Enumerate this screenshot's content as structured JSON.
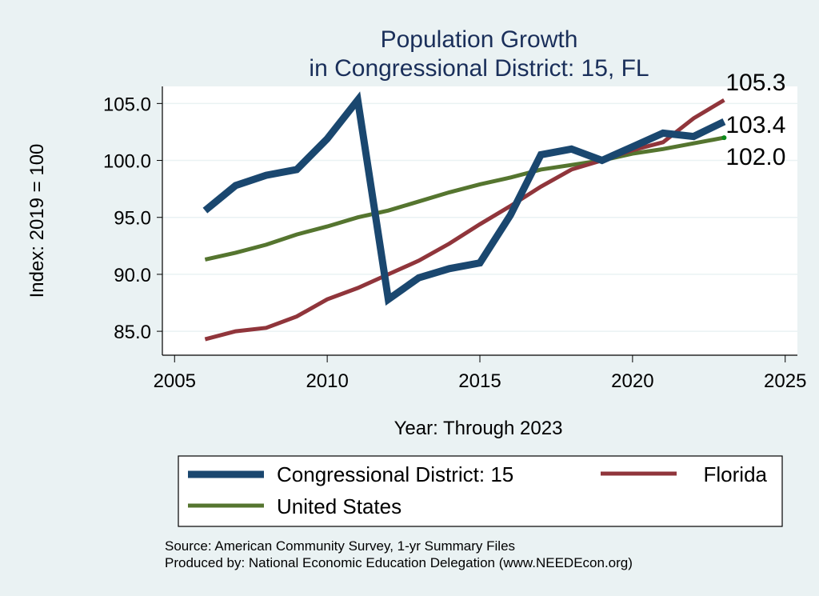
{
  "chart_data": {
    "type": "line",
    "title": [
      "Population Growth",
      "in Congressional District: 15, FL"
    ],
    "xlabel": "Year: Through 2023",
    "ylabel": "Index: 2019 = 100",
    "xlim": [
      2004.6,
      2025.4
    ],
    "ylim": [
      82.9,
      106.5
    ],
    "xticks": [
      2005,
      2010,
      2015,
      2020,
      2025
    ],
    "xtick_labels": [
      "2005",
      "2010",
      "2015",
      "2020",
      "2025"
    ],
    "yticks": [
      85,
      90,
      95,
      100,
      105
    ],
    "ytick_labels": [
      "85.0",
      "90.0",
      "95.0",
      "100.0",
      "105.0"
    ],
    "grid": "horizontal",
    "x": [
      2006,
      2007,
      2008,
      2009,
      2010,
      2011,
      2012,
      2013,
      2014,
      2015,
      2016,
      2017,
      2018,
      2019,
      2020,
      2021,
      2022,
      2023
    ],
    "series": [
      {
        "name": "Congressional District: 15",
        "color": "#1a476f",
        "values": [
          95.6,
          97.8,
          98.7,
          99.2,
          101.9,
          105.3,
          87.8,
          89.7,
          90.5,
          91.0,
          95.2,
          100.5,
          101.0,
          100.0,
          101.2,
          102.4,
          102.1,
          103.4
        ],
        "end_label": "103.4"
      },
      {
        "name": "Florida",
        "color": "#90353b",
        "values": [
          84.3,
          85.0,
          85.3,
          86.3,
          87.8,
          88.8,
          90.0,
          91.2,
          92.7,
          94.4,
          96.0,
          97.7,
          99.2,
          100.0,
          100.9,
          101.6,
          103.7,
          105.3
        ],
        "end_label": "105.3"
      },
      {
        "name": "United States",
        "color": "#55752f",
        "values": [
          91.3,
          91.9,
          92.6,
          93.5,
          94.2,
          95.0,
          95.6,
          96.4,
          97.2,
          97.9,
          98.5,
          99.2,
          99.6,
          100.0,
          100.6,
          101.0,
          101.5,
          102.0
        ],
        "end_label": "102.0"
      }
    ],
    "legend": {
      "placement": "bottom",
      "entries": [
        "Congressional District: 15",
        "Florida",
        "United States"
      ]
    },
    "notes": [
      "Source: American Community Survey, 1-yr Summary Files",
      "Produced by: National Economic Education Delegation (www.NEEDEcon.org)"
    ]
  }
}
